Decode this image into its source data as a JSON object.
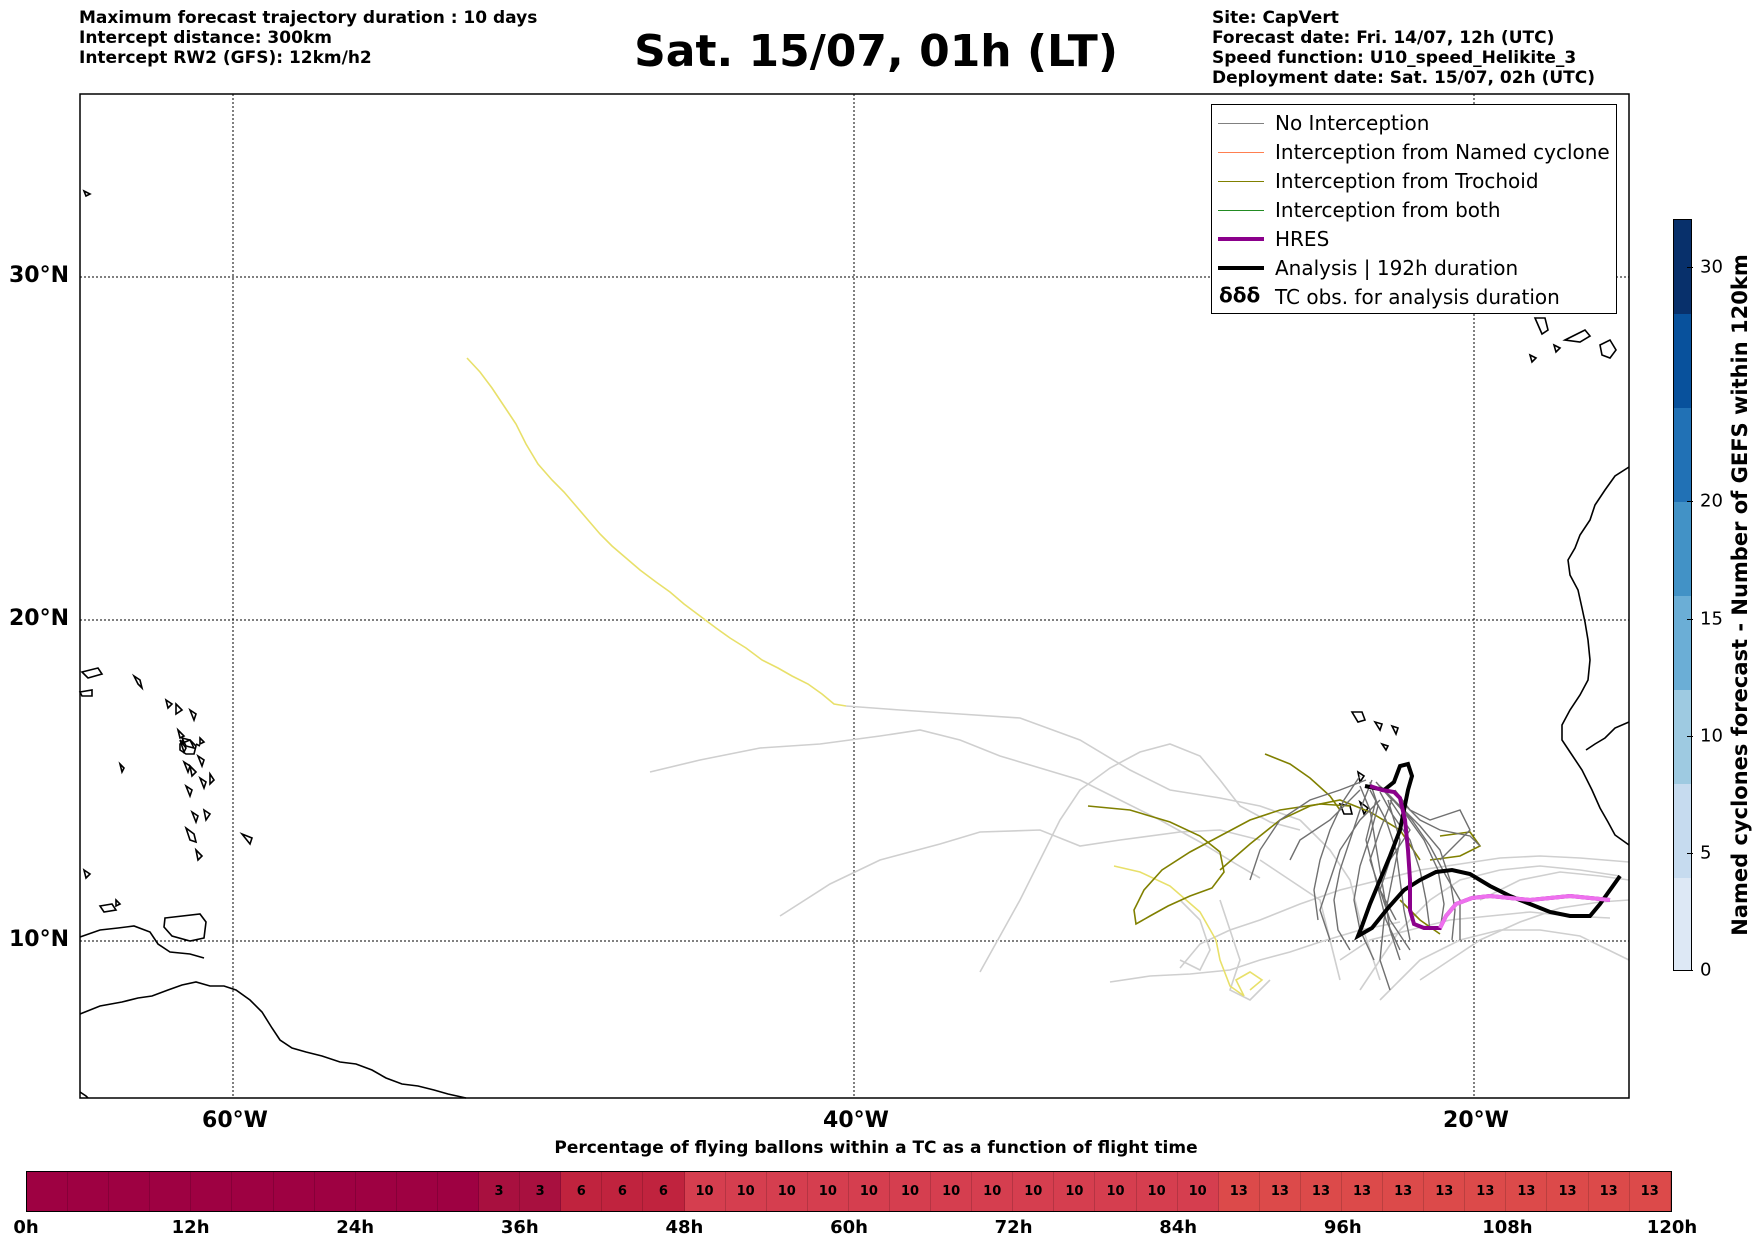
{
  "header_left": [
    "Maximum forecast trajectory duration : 10 days",
    "Intercept distance: 300km",
    "Intercept RW2 (GFS):  12km/h2"
  ],
  "title": "Sat. 15/07, 01h (LT)",
  "header_right": [
    "Site: CapVert",
    "Forecast date: Fri. 14/07, 12h (UTC)",
    "Speed function: U10_speed_Helikite_3",
    "Deployment date: Sat. 15/07, 02h (UTC)"
  ],
  "map": {
    "lat_labels": [
      "30°N",
      "20°N",
      "10°N"
    ],
    "lon_labels": [
      "60°W",
      "40°W",
      "20°W"
    ]
  },
  "legend": {
    "items": [
      {
        "label": "No Interception",
        "color": "#808080"
      },
      {
        "label": "Interception from Named cyclone",
        "color": "#ff7f50"
      },
      {
        "label": "Interception from Trochoid",
        "color": "#808000"
      },
      {
        "label": "Interception from both",
        "color": "#228b22"
      },
      {
        "label": "HRES",
        "color": "#8b008b"
      },
      {
        "label": "Analysis | 192h duration",
        "color": "#000000"
      }
    ],
    "tc_obs_label": "TC obs. for analysis duration",
    "tc_obs_symbol": "δδδ"
  },
  "colorbar": {
    "label": "Named cyclones forecast - Number of GEFS within 120km",
    "ticks": [
      "0",
      "5",
      "10",
      "15",
      "20",
      "30"
    ],
    "colors": [
      "#dde8f5",
      "#c6dbef",
      "#9ecae1",
      "#6baed6",
      "#4292c6",
      "#2171b5",
      "#08519c",
      "#08306b"
    ]
  },
  "timebar": {
    "title": "Percentage of flying ballons within a TC as a function of flight time",
    "values": [
      "",
      "",
      "",
      "",
      "",
      "",
      "",
      "",
      "",
      "",
      "",
      "3",
      "3",
      "6",
      "6",
      "6",
      "10",
      "10",
      "10",
      "10",
      "10",
      "10",
      "10",
      "10",
      "10",
      "10",
      "10",
      "10",
      "10",
      "13",
      "13",
      "13",
      "13",
      "13",
      "13",
      "13",
      "13",
      "13",
      "13",
      "13"
    ],
    "time_labels": [
      "0h",
      "12h",
      "24h",
      "36h",
      "48h",
      "60h",
      "72h",
      "84h",
      "96h",
      "108h",
      "120h"
    ],
    "colors": {
      "0": "#9e0142",
      "3": "#a8103f",
      "6": "#c0233e",
      "10": "#d53e4f",
      "13": "#dc4a4a"
    }
  }
}
